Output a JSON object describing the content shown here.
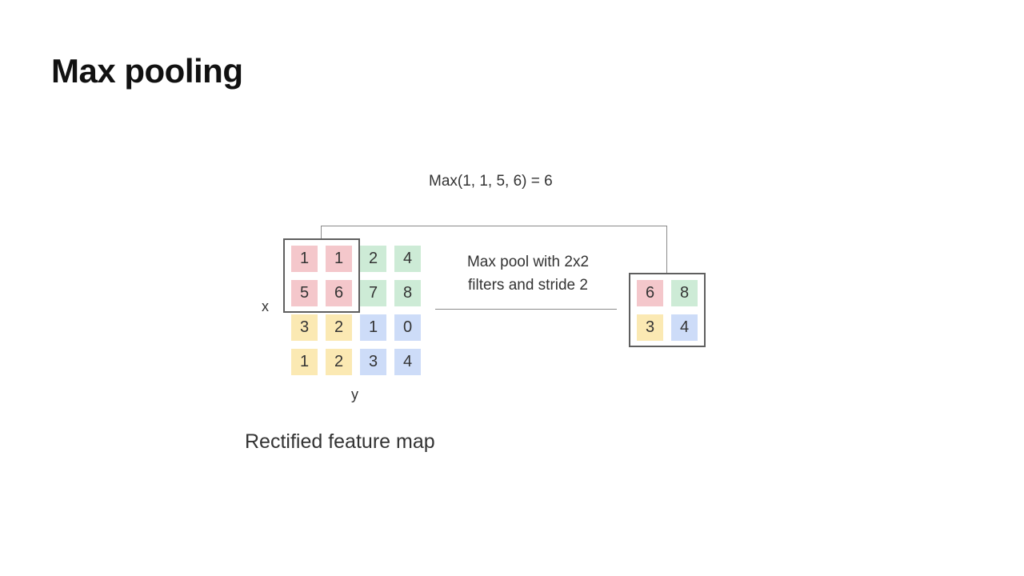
{
  "slide": {
    "title": "Max pooling",
    "formula": "Max(1, 1, 5, 6) = 6",
    "pool_label_line1": "Max pool with 2x2",
    "pool_label_line2": "filters and stride 2",
    "x_axis_label": "x",
    "y_axis_label": "y",
    "caption": "Rectified feature map"
  },
  "colors": {
    "red": "#f4c7cb",
    "green": "#cdebd6",
    "yellow": "#fbe9b3",
    "blue": "#cddcf8",
    "frame": "#5f5f5f",
    "connector": "#8a8a8a"
  },
  "feature_map": [
    [
      "1",
      "1",
      "2",
      "4"
    ],
    [
      "5",
      "6",
      "7",
      "8"
    ],
    [
      "3",
      "2",
      "1",
      "0"
    ],
    [
      "1",
      "2",
      "3",
      "4"
    ]
  ],
  "pooled_map": [
    [
      "6",
      "8"
    ],
    [
      "3",
      "4"
    ]
  ]
}
